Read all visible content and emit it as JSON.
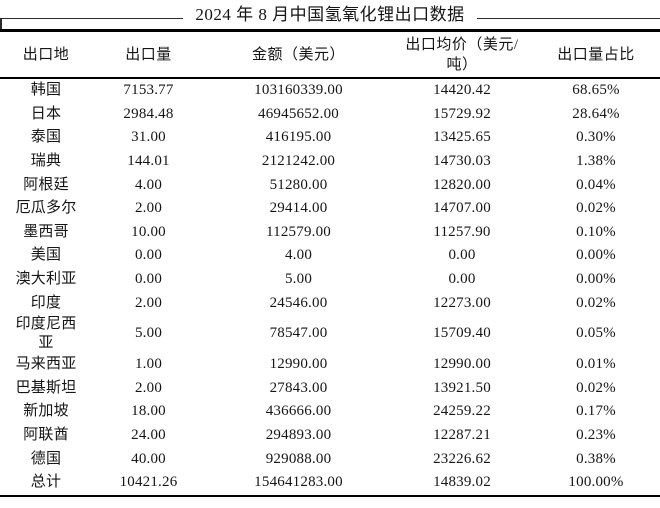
{
  "page": {
    "background": "#ffffff",
    "text_color": "#151515",
    "rule_color": "#000000"
  },
  "chart_data": {
    "type": "table",
    "title": "2024 年 8 月中国氢氧化锂出口数据",
    "columns": [
      "出口地",
      "出口量",
      "金额（美元）",
      "出口均价（美元/吨）",
      "出口量占比"
    ],
    "column_ids": [
      "destination",
      "export-volume",
      "amount-usd",
      "avg-price-usd-per-ton",
      "volume-share"
    ],
    "rows": [
      [
        "韩国",
        "7153.77",
        "103160339.00",
        "14420.42",
        "68.65%"
      ],
      [
        "日本",
        "2984.48",
        "46945652.00",
        "15729.92",
        "28.64%"
      ],
      [
        "泰国",
        "31.00",
        "416195.00",
        "13425.65",
        "0.30%"
      ],
      [
        "瑞典",
        "144.01",
        "2121242.00",
        "14730.03",
        "1.38%"
      ],
      [
        "阿根廷",
        "4.00",
        "51280.00",
        "12820.00",
        "0.04%"
      ],
      [
        "厄瓜多尔",
        "2.00",
        "29414.00",
        "14707.00",
        "0.02%"
      ],
      [
        "墨西哥",
        "10.00",
        "112579.00",
        "11257.90",
        "0.10%"
      ],
      [
        "美国",
        "0.00",
        "4.00",
        "0.00",
        "0.00%"
      ],
      [
        "澳大利亚",
        "0.00",
        "5.00",
        "0.00",
        "0.00%"
      ],
      [
        "印度",
        "2.00",
        "24546.00",
        "12273.00",
        "0.02%"
      ],
      [
        "印度尼西亚",
        "5.00",
        "78547.00",
        "15709.40",
        "0.05%"
      ],
      [
        "马来西亚",
        "1.00",
        "12990.00",
        "12990.00",
        "0.01%"
      ],
      [
        "巴基斯坦",
        "2.00",
        "27843.00",
        "13921.50",
        "0.02%"
      ],
      [
        "新加坡",
        "18.00",
        "436666.00",
        "24259.22",
        "0.17%"
      ],
      [
        "阿联酋",
        "24.00",
        "294893.00",
        "12287.21",
        "0.23%"
      ],
      [
        "德国",
        "40.00",
        "929088.00",
        "23226.62",
        "0.38%"
      ],
      [
        "总计",
        "10421.26",
        "154641283.00",
        "14839.02",
        "100.00%"
      ]
    ]
  }
}
